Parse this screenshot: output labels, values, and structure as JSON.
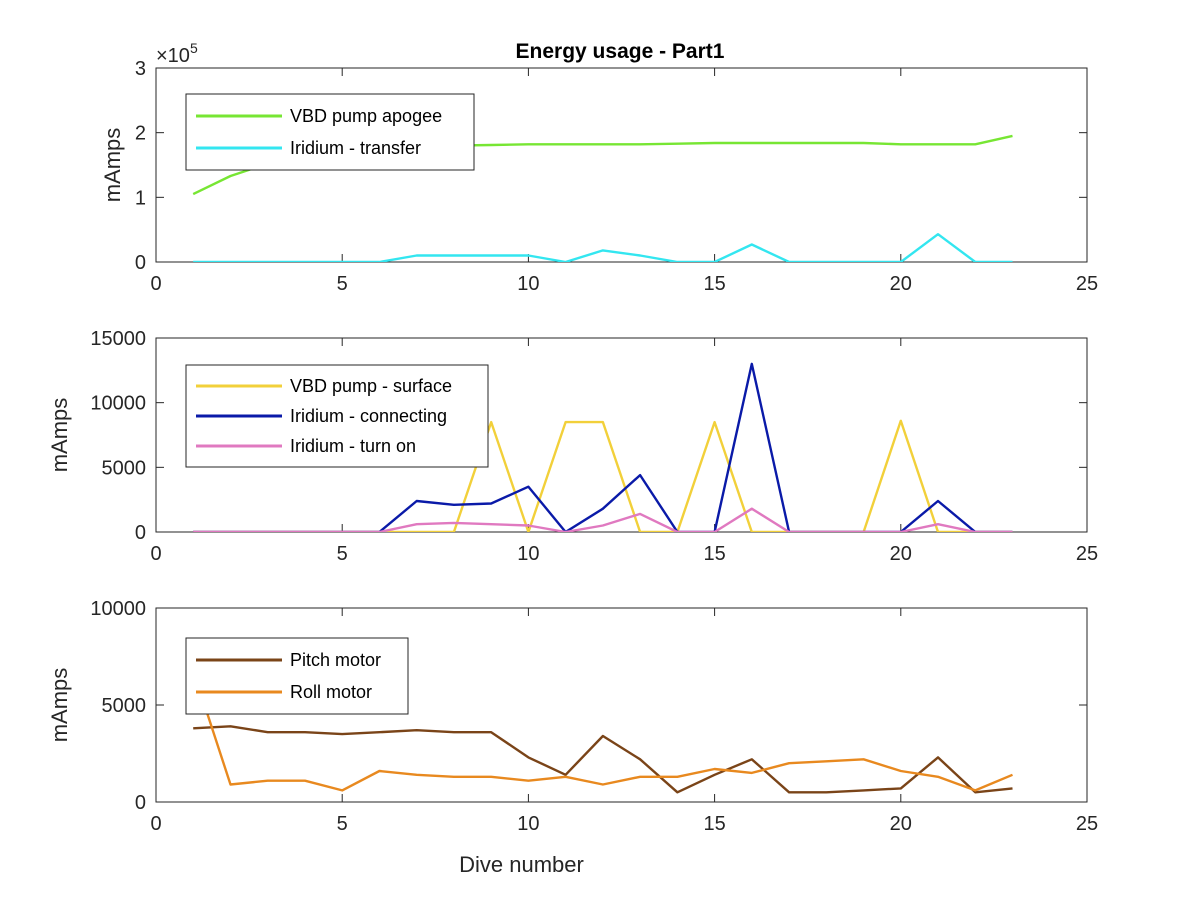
{
  "figure": {
    "title": "Energy usage - Part1"
  },
  "chart_data": [
    {
      "type": "line",
      "title": "Energy usage - Part1",
      "xlabel": "",
      "ylabel": "mAmps",
      "xlim": [
        0,
        25
      ],
      "ylim": [
        0,
        300000
      ],
      "xticks": [
        0,
        5,
        10,
        15,
        20,
        25
      ],
      "yticks": [
        0,
        100000,
        200000,
        300000
      ],
      "ytick_labels": [
        "0",
        "1",
        "2",
        "3"
      ],
      "exponent_label": "×10",
      "exponent_power": "5",
      "legend_position": "top-left",
      "x": [
        1,
        2,
        3,
        4,
        5,
        6,
        7,
        8,
        9,
        10,
        11,
        12,
        13,
        14,
        15,
        16,
        17,
        18,
        19,
        20,
        21,
        22,
        23
      ],
      "series": [
        {
          "name": "VBD pump apogee",
          "color": "#77e633",
          "values": [
            105000,
            133000,
            152000,
            168000,
            174000,
            177000,
            179000,
            180000,
            181000,
            182000,
            182000,
            182000,
            182000,
            183000,
            184000,
            184000,
            184000,
            184000,
            184000,
            182000,
            182000,
            182000,
            195000
          ]
        },
        {
          "name": "Iridium - transfer",
          "color": "#33e6f0",
          "values": [
            0,
            0,
            0,
            0,
            0,
            0,
            10000,
            10000,
            10000,
            10000,
            0,
            18000,
            10000,
            0,
            0,
            27000,
            0,
            0,
            0,
            0,
            43000,
            0,
            0
          ]
        }
      ]
    },
    {
      "type": "line",
      "title": "",
      "xlabel": "",
      "ylabel": "mAmps",
      "xlim": [
        0,
        25
      ],
      "ylim": [
        0,
        15000
      ],
      "xticks": [
        0,
        5,
        10,
        15,
        20,
        25
      ],
      "yticks": [
        0,
        5000,
        10000,
        15000
      ],
      "ytick_labels": [
        "0",
        "5000",
        "10000",
        "15000"
      ],
      "legend_position": "top-left",
      "x": [
        1,
        2,
        3,
        4,
        5,
        6,
        7,
        8,
        9,
        10,
        11,
        12,
        13,
        14,
        15,
        16,
        17,
        18,
        19,
        20,
        21,
        22,
        23
      ],
      "series": [
        {
          "name": "VBD pump - surface",
          "color": "#f2d03a",
          "values": [
            0,
            0,
            0,
            0,
            0,
            0,
            0,
            0,
            8500,
            0,
            8500,
            8500,
            0,
            0,
            8500,
            0,
            0,
            0,
            0,
            8600,
            0,
            0,
            0
          ]
        },
        {
          "name": "Iridium - connecting",
          "color": "#0a1aa8",
          "values": [
            0,
            0,
            0,
            0,
            0,
            0,
            2400,
            2100,
            2200,
            3500,
            0,
            1800,
            4400,
            0,
            0,
            13000,
            0,
            0,
            0,
            0,
            2400,
            0,
            0
          ]
        },
        {
          "name": "Iridium - turn on",
          "color": "#e079c0",
          "values": [
            0,
            0,
            0,
            0,
            0,
            0,
            600,
            700,
            600,
            500,
            0,
            500,
            1400,
            0,
            0,
            1800,
            0,
            0,
            0,
            0,
            600,
            0,
            0
          ]
        }
      ]
    },
    {
      "type": "line",
      "title": "",
      "xlabel": "Dive number",
      "ylabel": "mAmps",
      "xlim": [
        0,
        25
      ],
      "ylim": [
        0,
        10000
      ],
      "xticks": [
        0,
        5,
        10,
        15,
        20,
        25
      ],
      "yticks": [
        0,
        5000,
        10000
      ],
      "ytick_labels": [
        "0",
        "5000",
        "10000"
      ],
      "legend_position": "top-left",
      "series": [
        {
          "name": "Pitch motor",
          "color": "#7a4418",
          "x": [
            1,
            2,
            3,
            4,
            5,
            6,
            7,
            8,
            9,
            10,
            11,
            12,
            13,
            14,
            15,
            16,
            17,
            18,
            19,
            20,
            21,
            22,
            23
          ],
          "values": [
            3800,
            3900,
            3600,
            3600,
            3500,
            3600,
            3700,
            3600,
            3600,
            2300,
            1400,
            3400,
            2200,
            500,
            1400,
            2200,
            500,
            500,
            600,
            700,
            2300,
            500,
            700
          ]
        },
        {
          "name": "Roll motor",
          "color": "#e8891f",
          "x": [
            1.2,
            2,
            3,
            4,
            5,
            6,
            7,
            8,
            9,
            10,
            11,
            12,
            13,
            14,
            15,
            16,
            17,
            18,
            19,
            20,
            21,
            22,
            23
          ],
          "values": [
            5600,
            900,
            1100,
            1100,
            600,
            1600,
            1400,
            1300,
            1300,
            1100,
            1300,
            900,
            1300,
            1300,
            1700,
            1500,
            2000,
            2100,
            2200,
            1600,
            1300,
            600,
            1400
          ]
        }
      ]
    }
  ]
}
